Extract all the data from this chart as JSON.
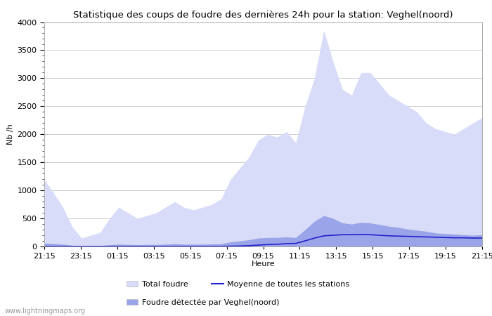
{
  "title": "Statistique des coups de foudre des dernières 24h pour la station: Veghel(noord)",
  "xlabel": "Heure",
  "ylabel": "Nb /h",
  "watermark": "www.lightningmaps.org",
  "legend_total": "Total foudre",
  "legend_detected": "Foudre détectée par Veghel(noord)",
  "legend_moyenne": "Moyenne de toutes les stations",
  "xtick_labels": [
    "21:15",
    "23:15",
    "01:15",
    "03:15",
    "05:15",
    "07:15",
    "09:15",
    "11:15",
    "13:15",
    "15:15",
    "17:15",
    "19:15",
    "21:15"
  ],
  "ylim": [
    0,
    4000
  ],
  "yticks": [
    0,
    500,
    1000,
    1500,
    2000,
    2500,
    3000,
    3500,
    4000
  ],
  "color_total": "#d8dcf8",
  "color_detected": "#9aa4e8",
  "color_moyenne": "#2222cc",
  "background_color": "#ffffff",
  "grid_color": "#cccccc",
  "total_foudre": [
    1200,
    950,
    700,
    350,
    150,
    200,
    250,
    500,
    700,
    600,
    500,
    550,
    600,
    700,
    800,
    700,
    650,
    700,
    750,
    850,
    1200,
    1400,
    1600,
    1900,
    2000,
    1950,
    2050,
    1850,
    2500,
    3000,
    3850,
    3300,
    2800,
    2700,
    3100,
    3100,
    2900,
    2700,
    2600,
    2500,
    2400,
    2200,
    2100,
    2050,
    2000,
    2100,
    2200,
    2300
  ],
  "detected_foudre": [
    60,
    50,
    40,
    20,
    10,
    10,
    15,
    30,
    40,
    35,
    30,
    35,
    35,
    40,
    50,
    40,
    40,
    40,
    45,
    50,
    80,
    100,
    120,
    150,
    160,
    160,
    170,
    160,
    300,
    450,
    550,
    500,
    420,
    400,
    430,
    420,
    390,
    360,
    340,
    310,
    290,
    270,
    240,
    230,
    220,
    210,
    200,
    210
  ],
  "moyenne": [
    2,
    2,
    2,
    2,
    2,
    2,
    2,
    2,
    2,
    2,
    2,
    2,
    2,
    2,
    2,
    2,
    2,
    2,
    2,
    2,
    5,
    8,
    15,
    25,
    35,
    40,
    50,
    55,
    100,
    150,
    190,
    200,
    210,
    210,
    215,
    210,
    200,
    190,
    185,
    180,
    175,
    170,
    165,
    160,
    155,
    155,
    150,
    150
  ]
}
